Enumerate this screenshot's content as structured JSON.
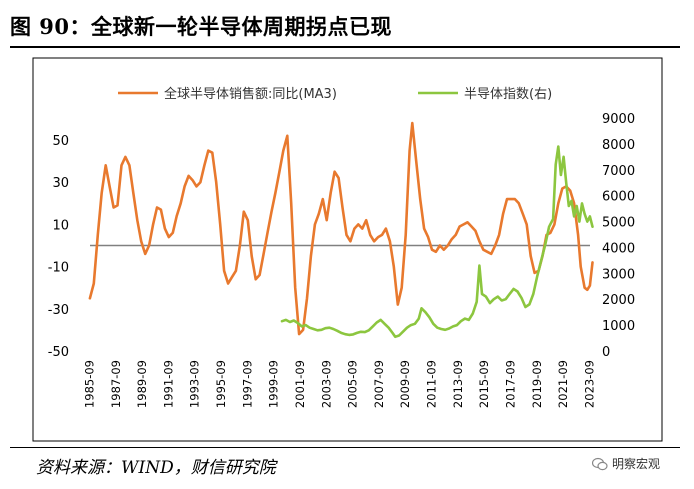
{
  "figure": {
    "title": "图 90：全球新一轮半导体周期拐点已现",
    "source": "资料来源：WIND，财信研究院",
    "watermark": "明察宏观"
  },
  "chart_data": {
    "type": "line",
    "x_ticks": [
      "1985-09",
      "1987-09",
      "1989-09",
      "1991-09",
      "1993-09",
      "1995-09",
      "1997-09",
      "1999-09",
      "2001-09",
      "2003-09",
      "2005-09",
      "2007-09",
      "2009-09",
      "2011-09",
      "2013-09",
      "2015-09",
      "2017-09",
      "2019-09",
      "2021-09",
      "2023-09"
    ],
    "y_left": {
      "ticks": [
        50,
        30,
        10,
        -10,
        -30,
        -50
      ],
      "range": [
        -50,
        60
      ]
    },
    "y_right": {
      "ticks": [
        9000,
        8000,
        7000,
        6000,
        5000,
        4000,
        3000,
        2000,
        1000,
        0
      ],
      "range": [
        0,
        9000
      ]
    },
    "legend_position": "top",
    "grid": false,
    "series": [
      {
        "name": "全球半导体销售额:同比(MA3)",
        "axis": "left",
        "color": "#E8792E",
        "points": [
          [
            1985.7,
            -25
          ],
          [
            1986.0,
            -18
          ],
          [
            1986.3,
            5
          ],
          [
            1986.6,
            25
          ],
          [
            1986.9,
            38
          ],
          [
            1987.2,
            28
          ],
          [
            1987.5,
            18
          ],
          [
            1987.8,
            19
          ],
          [
            1988.1,
            38
          ],
          [
            1988.4,
            42
          ],
          [
            1988.7,
            38
          ],
          [
            1989.0,
            25
          ],
          [
            1989.3,
            12
          ],
          [
            1989.6,
            2
          ],
          [
            1989.9,
            -4
          ],
          [
            1990.2,
            0
          ],
          [
            1990.5,
            10
          ],
          [
            1990.8,
            18
          ],
          [
            1991.1,
            17
          ],
          [
            1991.4,
            8
          ],
          [
            1991.7,
            4
          ],
          [
            1992.0,
            6
          ],
          [
            1992.3,
            14
          ],
          [
            1992.6,
            20
          ],
          [
            1992.9,
            28
          ],
          [
            1993.2,
            33
          ],
          [
            1993.5,
            31
          ],
          [
            1993.8,
            28
          ],
          [
            1994.1,
            30
          ],
          [
            1994.4,
            38
          ],
          [
            1994.7,
            45
          ],
          [
            1995.0,
            44
          ],
          [
            1995.3,
            30
          ],
          [
            1995.6,
            10
          ],
          [
            1995.9,
            -12
          ],
          [
            1996.2,
            -18
          ],
          [
            1996.5,
            -15
          ],
          [
            1996.8,
            -12
          ],
          [
            1997.1,
            0
          ],
          [
            1997.4,
            16
          ],
          [
            1997.7,
            12
          ],
          [
            1998.0,
            -5
          ],
          [
            1998.3,
            -16
          ],
          [
            1998.6,
            -14
          ],
          [
            1998.9,
            -4
          ],
          [
            1999.2,
            6
          ],
          [
            1999.5,
            16
          ],
          [
            1999.8,
            25
          ],
          [
            2000.1,
            35
          ],
          [
            2000.4,
            45
          ],
          [
            2000.7,
            52
          ],
          [
            2001.0,
            20
          ],
          [
            2001.3,
            -20
          ],
          [
            2001.6,
            -42
          ],
          [
            2001.9,
            -40
          ],
          [
            2002.2,
            -25
          ],
          [
            2002.5,
            -5
          ],
          [
            2002.8,
            10
          ],
          [
            2003.1,
            15
          ],
          [
            2003.4,
            22
          ],
          [
            2003.7,
            12
          ],
          [
            2004.0,
            25
          ],
          [
            2004.3,
            35
          ],
          [
            2004.6,
            32
          ],
          [
            2004.9,
            18
          ],
          [
            2005.2,
            5
          ],
          [
            2005.5,
            2
          ],
          [
            2005.8,
            8
          ],
          [
            2006.1,
            10
          ],
          [
            2006.4,
            8
          ],
          [
            2006.7,
            12
          ],
          [
            2007.0,
            5
          ],
          [
            2007.3,
            2
          ],
          [
            2007.6,
            4
          ],
          [
            2007.9,
            5
          ],
          [
            2008.2,
            8
          ],
          [
            2008.5,
            2
          ],
          [
            2008.8,
            -10
          ],
          [
            2009.1,
            -28
          ],
          [
            2009.4,
            -20
          ],
          [
            2009.7,
            5
          ],
          [
            2010.0,
            45
          ],
          [
            2010.2,
            58
          ],
          [
            2010.5,
            40
          ],
          [
            2010.8,
            22
          ],
          [
            2011.1,
            8
          ],
          [
            2011.4,
            4
          ],
          [
            2011.7,
            -2
          ],
          [
            2012.0,
            -3
          ],
          [
            2012.3,
            0
          ],
          [
            2012.6,
            -2
          ],
          [
            2012.9,
            0
          ],
          [
            2013.2,
            3
          ],
          [
            2013.5,
            5
          ],
          [
            2013.8,
            9
          ],
          [
            2014.1,
            10
          ],
          [
            2014.4,
            11
          ],
          [
            2014.7,
            9
          ],
          [
            2015.0,
            7
          ],
          [
            2015.3,
            2
          ],
          [
            2015.6,
            -2
          ],
          [
            2015.9,
            -3
          ],
          [
            2016.2,
            -4
          ],
          [
            2016.5,
            0
          ],
          [
            2016.8,
            5
          ],
          [
            2017.1,
            15
          ],
          [
            2017.4,
            22
          ],
          [
            2017.7,
            22
          ],
          [
            2018.0,
            22
          ],
          [
            2018.3,
            20
          ],
          [
            2018.6,
            15
          ],
          [
            2018.9,
            10
          ],
          [
            2019.2,
            -5
          ],
          [
            2019.5,
            -13
          ],
          [
            2019.8,
            -12
          ],
          [
            2020.1,
            -5
          ],
          [
            2020.4,
            5
          ],
          [
            2020.7,
            6
          ],
          [
            2021.0,
            10
          ],
          [
            2021.3,
            20
          ],
          [
            2021.6,
            27
          ],
          [
            2021.9,
            28
          ],
          [
            2022.2,
            26
          ],
          [
            2022.5,
            20
          ],
          [
            2022.8,
            5
          ],
          [
            2023.0,
            -10
          ],
          [
            2023.3,
            -20
          ],
          [
            2023.5,
            -21
          ],
          [
            2023.7,
            -19
          ],
          [
            2023.9,
            -8
          ]
        ]
      },
      {
        "name": "半导体指数(右)",
        "axis": "right",
        "color": "#8CC63F",
        "points": [
          [
            2000.3,
            1150
          ],
          [
            2000.6,
            1200
          ],
          [
            2000.9,
            1120
          ],
          [
            2001.2,
            1180
          ],
          [
            2001.5,
            1080
          ],
          [
            2001.8,
            950
          ],
          [
            2002.1,
            1000
          ],
          [
            2002.4,
            900
          ],
          [
            2002.7,
            850
          ],
          [
            2003.0,
            800
          ],
          [
            2003.3,
            820
          ],
          [
            2003.6,
            880
          ],
          [
            2003.9,
            900
          ],
          [
            2004.2,
            850
          ],
          [
            2004.5,
            780
          ],
          [
            2004.8,
            700
          ],
          [
            2005.1,
            650
          ],
          [
            2005.4,
            620
          ],
          [
            2005.7,
            640
          ],
          [
            2006.0,
            700
          ],
          [
            2006.3,
            740
          ],
          [
            2006.6,
            730
          ],
          [
            2006.9,
            800
          ],
          [
            2007.2,
            950
          ],
          [
            2007.5,
            1100
          ],
          [
            2007.8,
            1200
          ],
          [
            2008.1,
            1050
          ],
          [
            2008.4,
            900
          ],
          [
            2008.7,
            700
          ],
          [
            2008.9,
            550
          ],
          [
            2009.2,
            600
          ],
          [
            2009.5,
            750
          ],
          [
            2009.8,
            900
          ],
          [
            2010.1,
            1000
          ],
          [
            2010.4,
            1050
          ],
          [
            2010.7,
            1250
          ],
          [
            2010.9,
            1650
          ],
          [
            2011.2,
            1500
          ],
          [
            2011.5,
            1300
          ],
          [
            2011.8,
            1050
          ],
          [
            2012.1,
            900
          ],
          [
            2012.4,
            850
          ],
          [
            2012.7,
            820
          ],
          [
            2013.0,
            870
          ],
          [
            2013.3,
            950
          ],
          [
            2013.6,
            1000
          ],
          [
            2013.9,
            1150
          ],
          [
            2014.2,
            1250
          ],
          [
            2014.5,
            1200
          ],
          [
            2014.8,
            1450
          ],
          [
            2015.1,
            1900
          ],
          [
            2015.3,
            3300
          ],
          [
            2015.5,
            2200
          ],
          [
            2015.8,
            2100
          ],
          [
            2016.1,
            1850
          ],
          [
            2016.4,
            2000
          ],
          [
            2016.7,
            2100
          ],
          [
            2017.0,
            1950
          ],
          [
            2017.3,
            2000
          ],
          [
            2017.6,
            2200
          ],
          [
            2017.9,
            2400
          ],
          [
            2018.2,
            2300
          ],
          [
            2018.5,
            2050
          ],
          [
            2018.8,
            1700
          ],
          [
            2019.1,
            1800
          ],
          [
            2019.4,
            2200
          ],
          [
            2019.7,
            2900
          ],
          [
            2020.0,
            3500
          ],
          [
            2020.3,
            4100
          ],
          [
            2020.6,
            4800
          ],
          [
            2020.9,
            5100
          ],
          [
            2021.1,
            7200
          ],
          [
            2021.3,
            7900
          ],
          [
            2021.5,
            6800
          ],
          [
            2021.7,
            7500
          ],
          [
            2021.9,
            6500
          ],
          [
            2022.1,
            5600
          ],
          [
            2022.3,
            5800
          ],
          [
            2022.5,
            5200
          ],
          [
            2022.7,
            5600
          ],
          [
            2022.9,
            5000
          ],
          [
            2023.1,
            5700
          ],
          [
            2023.3,
            5300
          ],
          [
            2023.5,
            5000
          ],
          [
            2023.7,
            5200
          ],
          [
            2023.9,
            4800
          ]
        ]
      }
    ]
  }
}
